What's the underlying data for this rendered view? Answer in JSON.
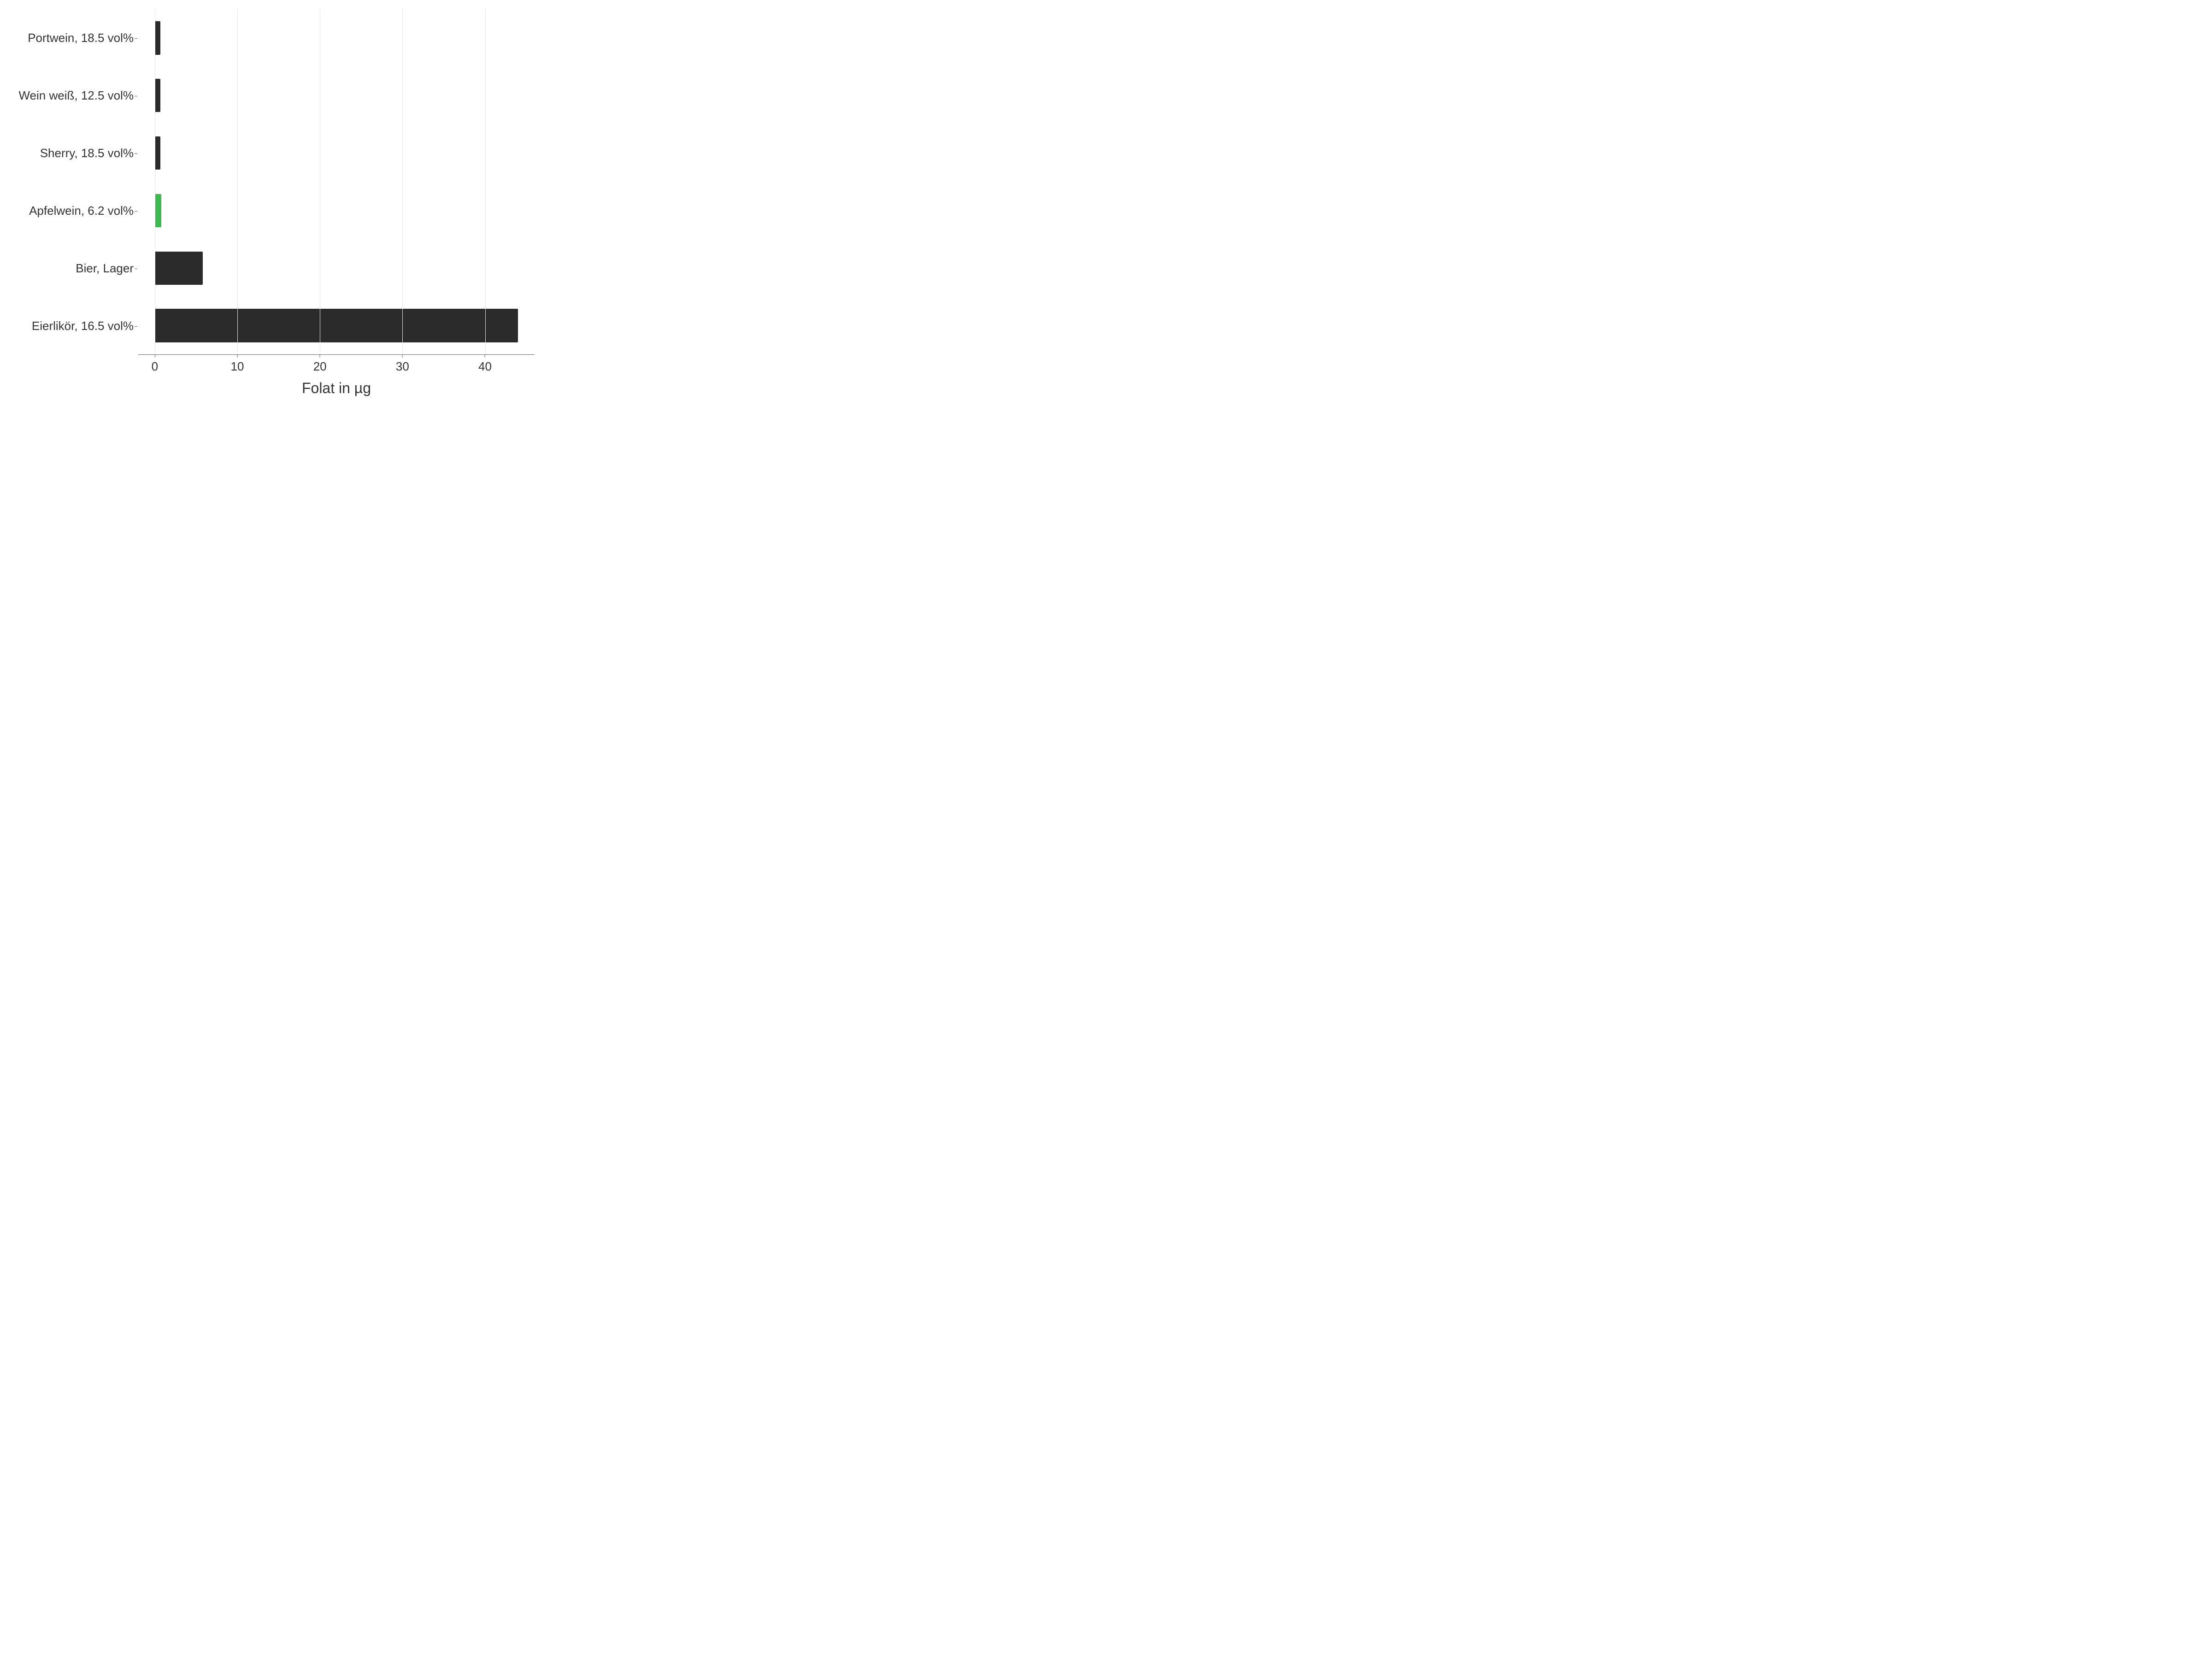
{
  "chart": {
    "type": "bar-horizontal",
    "x_title": "Folat in µg",
    "x_title_fontsize": 32,
    "label_fontsize": 26,
    "tick_label_fontsize": 26,
    "background_color": "#ffffff",
    "grid_color": "#e6e6e6",
    "axis_color": "#666666",
    "text_color": "#333333",
    "bar_default_color": "#2b2b2b",
    "bar_highlight_color": "#3bbb4f",
    "bar_border_radius": 2,
    "bar_height_ratio": 0.58,
    "xlim": [
      -2,
      46
    ],
    "x_ticks": [
      0,
      10,
      20,
      30,
      40
    ],
    "categories": [
      {
        "label": "Portwein, 18.5 vol%",
        "value": 0.7,
        "color": "#2b2b2b"
      },
      {
        "label": "Wein weiß, 12.5 vol%",
        "value": 0.7,
        "color": "#2b2b2b"
      },
      {
        "label": "Sherry, 18.5 vol%",
        "value": 0.7,
        "color": "#2b2b2b"
      },
      {
        "label": "Apfelwein, 6.2 vol%",
        "value": 0.8,
        "color": "#3bbb4f"
      },
      {
        "label": "Bier, Lager",
        "value": 5.8,
        "color": "#2b2b2b"
      },
      {
        "label": "Eierlikör, 16.5 vol%",
        "value": 44.0,
        "color": "#2b2b2b"
      }
    ]
  }
}
